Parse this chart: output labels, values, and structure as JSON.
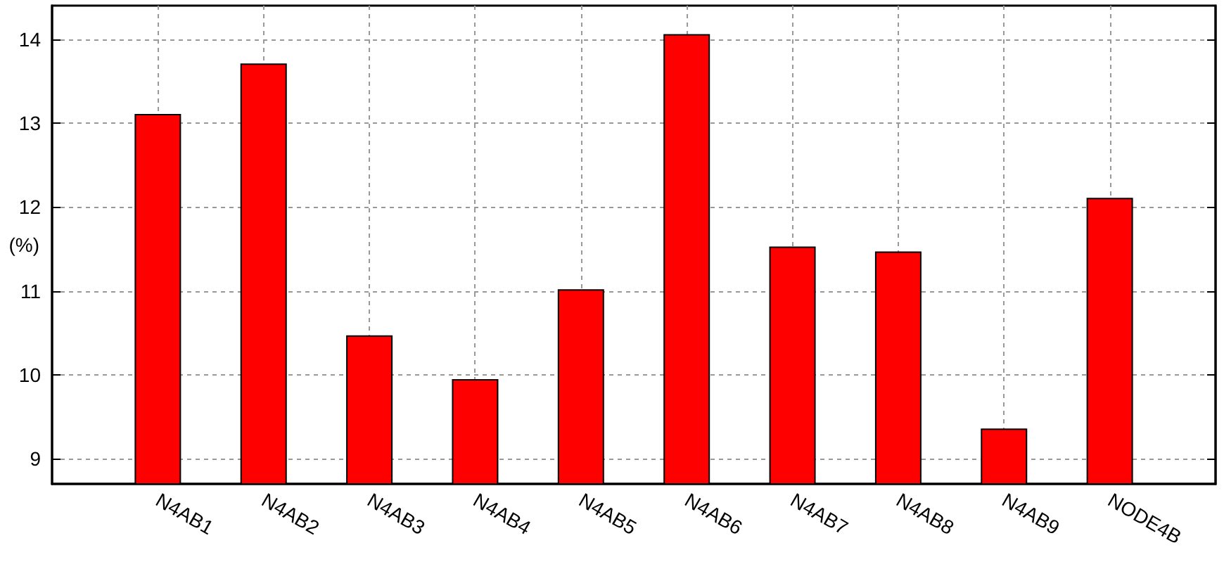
{
  "chart_data": {
    "type": "bar",
    "ylabel": "(%)",
    "categories": [
      "N4AB1",
      "N4AB2",
      "N4AB3",
      "N4AB4",
      "N4AB5",
      "N4AB6",
      "N4AB7",
      "N4AB8",
      "N4AB9",
      "NODE4B"
    ],
    "values": [
      13.11,
      13.71,
      10.47,
      9.95,
      11.02,
      14.06,
      11.53,
      11.47,
      9.36,
      12.11
    ],
    "color": "#ff0000",
    "ylim": [
      8.7,
      14.4
    ],
    "yticks": [
      9,
      10,
      11,
      12,
      13,
      14
    ],
    "grid": true
  }
}
